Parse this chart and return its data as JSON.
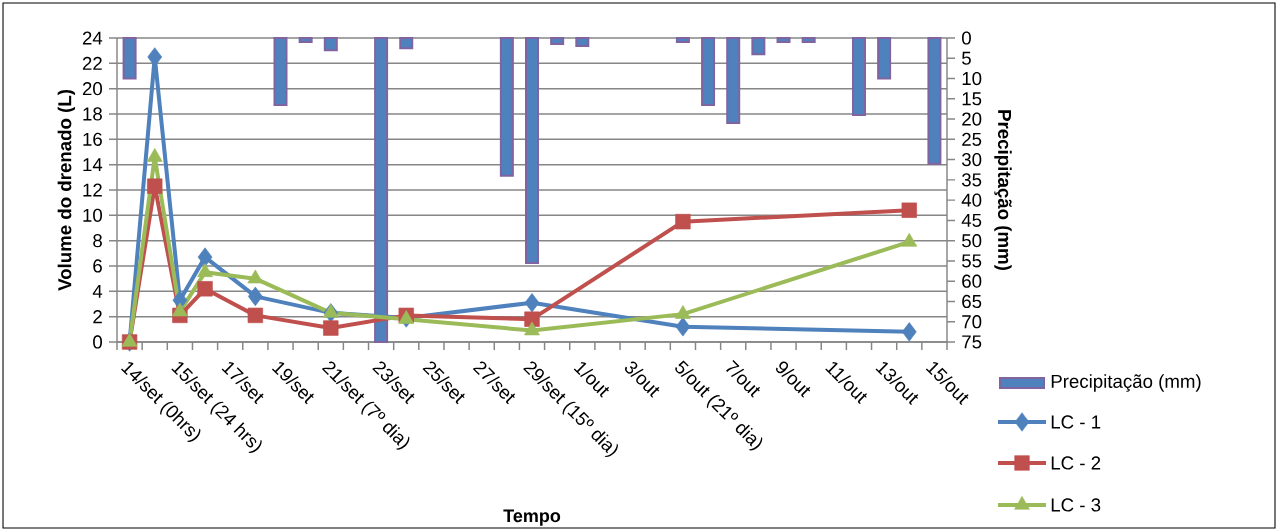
{
  "chart_data": {
    "type": "line",
    "xlabel": "Tempo",
    "ylabel": "Volume do drenado (L)",
    "y2label": "Precipitação (mm)",
    "categories": [
      "14/set (0hrs)",
      null,
      "15/set (24 hrs)",
      null,
      "17/set",
      null,
      "19/set",
      null,
      "21/set (7º dia)",
      null,
      "23/set",
      null,
      "25/set",
      null,
      "27/set",
      null,
      "29/set (15º dia)",
      null,
      "1/out",
      null,
      "3/out",
      null,
      "5/out (21º dia)",
      null,
      "7/out",
      null,
      "9/out",
      null,
      "11/out",
      null,
      "13/out",
      null,
      "15/out"
    ],
    "ylim": [
      0,
      24
    ],
    "yticks": [
      0,
      2,
      4,
      6,
      8,
      10,
      12,
      14,
      16,
      18,
      20,
      22,
      24
    ],
    "y2lim": [
      75,
      0
    ],
    "y2ticks": [
      0,
      5,
      10,
      15,
      20,
      25,
      30,
      35,
      40,
      45,
      50,
      55,
      60,
      65,
      70,
      75
    ],
    "grid": "y",
    "legend": "right",
    "series": [
      {
        "name": "Precipitação (mm)",
        "type": "bar",
        "axis": "y2",
        "color": "#4f81bd",
        "values": [
          10,
          null,
          null,
          null,
          null,
          null,
          16.5,
          1,
          3,
          null,
          75,
          2.5,
          null,
          null,
          null,
          34,
          55.5,
          1.5,
          2,
          null,
          null,
          null,
          1,
          16.5,
          21,
          4,
          1,
          1,
          null,
          19,
          10,
          null,
          31
        ]
      },
      {
        "name": "LC - 1",
        "color": "#4f81bd",
        "marker": "diamond",
        "values": [
          0,
          22.5,
          3.3,
          6.7,
          null,
          3.6,
          null,
          null,
          2.3,
          null,
          null,
          1.9,
          null,
          null,
          null,
          null,
          3.1,
          null,
          null,
          null,
          null,
          null,
          1.2,
          null,
          null,
          null,
          null,
          null,
          null,
          null,
          null,
          0.8,
          null
        ]
      },
      {
        "name": "LC - 2",
        "color": "#c0504d",
        "marker": "square",
        "values": [
          0,
          12.3,
          2.1,
          4.2,
          null,
          2.1,
          null,
          null,
          1.1,
          null,
          null,
          2.1,
          null,
          null,
          null,
          null,
          1.8,
          null,
          null,
          null,
          null,
          null,
          9.5,
          null,
          null,
          null,
          null,
          null,
          null,
          null,
          null,
          10.4,
          null
        ]
      },
      {
        "name": "LC - 3",
        "color": "#9bbb59",
        "marker": "triangle",
        "values": [
          0,
          14.6,
          2.4,
          5.5,
          null,
          5,
          null,
          null,
          2.3,
          null,
          null,
          1.8,
          null,
          null,
          null,
          null,
          0.9,
          null,
          null,
          null,
          null,
          null,
          2.2,
          null,
          null,
          null,
          null,
          null,
          null,
          null,
          null,
          7.9,
          null
        ]
      }
    ]
  }
}
